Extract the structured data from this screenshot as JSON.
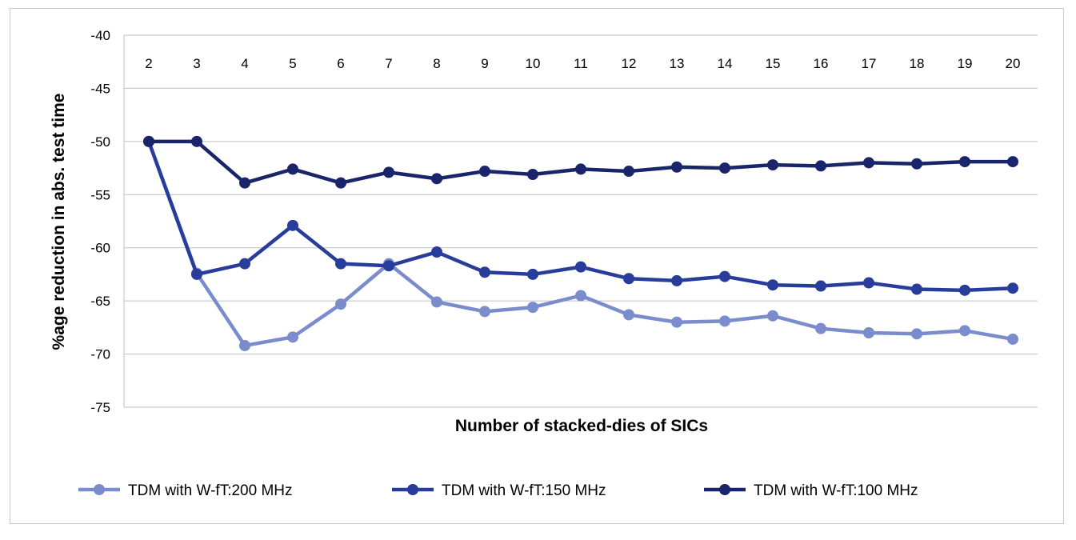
{
  "chart_data": {
    "type": "line",
    "title": "",
    "xlabel": "Number of stacked-dies of SICs",
    "ylabel": "%age reduction in abs. test time",
    "ylim": [
      -75,
      -40
    ],
    "yticks": [
      "-40",
      "-45",
      "-50",
      "-55",
      "-60",
      "-65",
      "-70",
      "-75"
    ],
    "x_axis_position": "top",
    "grid": "horizontal",
    "legend_position": "bottom",
    "categories": [
      "2",
      "3",
      "4",
      "5",
      "6",
      "7",
      "8",
      "9",
      "10",
      "11",
      "12",
      "13",
      "14",
      "15",
      "16",
      "17",
      "18",
      "19",
      "20"
    ],
    "series": [
      {
        "name": "TDM with W-fT:200 MHz",
        "color": "#7b8ccc",
        "values": [
          -50,
          -62.4,
          -69.2,
          -68.4,
          -65.3,
          -61.5,
          -65.1,
          -66.0,
          -65.6,
          -64.5,
          -66.3,
          -67.0,
          -66.9,
          -66.4,
          -67.6,
          -68.0,
          -68.1,
          -67.8,
          -68.6
        ]
      },
      {
        "name": "TDM with W-fT:150 MHz",
        "color": "#283c9c",
        "values": [
          -50,
          -62.5,
          -61.5,
          -57.9,
          -61.5,
          -61.7,
          -60.4,
          -62.3,
          -62.5,
          -61.8,
          -62.9,
          -63.1,
          -62.7,
          -63.5,
          -63.6,
          -63.3,
          -63.9,
          -64.0,
          -63.8
        ]
      },
      {
        "name": "TDM with W-fT:100 MHz",
        "color": "#19246b",
        "values": [
          -50,
          -50,
          -53.9,
          -52.6,
          -53.9,
          -52.9,
          -53.5,
          -52.8,
          -53.1,
          -52.6,
          -52.8,
          -52.4,
          -52.5,
          -52.2,
          -52.3,
          -52.0,
          -52.1,
          -51.9,
          -51.9
        ]
      }
    ]
  }
}
